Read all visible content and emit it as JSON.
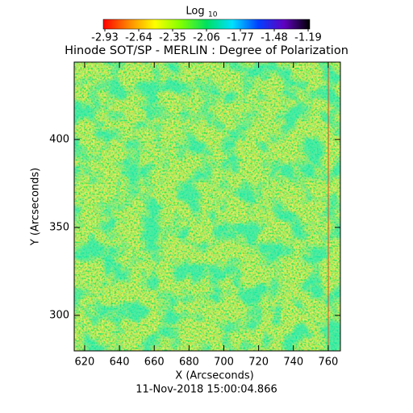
{
  "chart_data": {
    "type": "image",
    "title": "Hinode SOT/SP - MERLIN : Degree of Polarization",
    "x_label": "X (Arcseconds)",
    "y_label": "Y (Arcseconds)",
    "footer": "11-Nov-2018 15:00:04.866",
    "colorbar_label": "Log",
    "colorbar_label_sub": "10",
    "colormap": [
      "#ff0000",
      "#ff8800",
      "#ffff00",
      "#80ff00",
      "#00e060",
      "#00e0ff",
      "#0040ff",
      "#6000c0",
      "#000000"
    ],
    "clim": [
      -2.93,
      -1.19
    ],
    "cticks": [
      -2.93,
      -2.64,
      -2.35,
      -2.06,
      -1.77,
      -1.48,
      -1.19
    ],
    "xlim": [
      614,
      767
    ],
    "xticks": [
      620,
      640,
      660,
      680,
      700,
      720,
      740,
      760
    ],
    "ylim": [
      279.8,
      444
    ],
    "yticks": [
      300,
      350,
      400
    ]
  }
}
